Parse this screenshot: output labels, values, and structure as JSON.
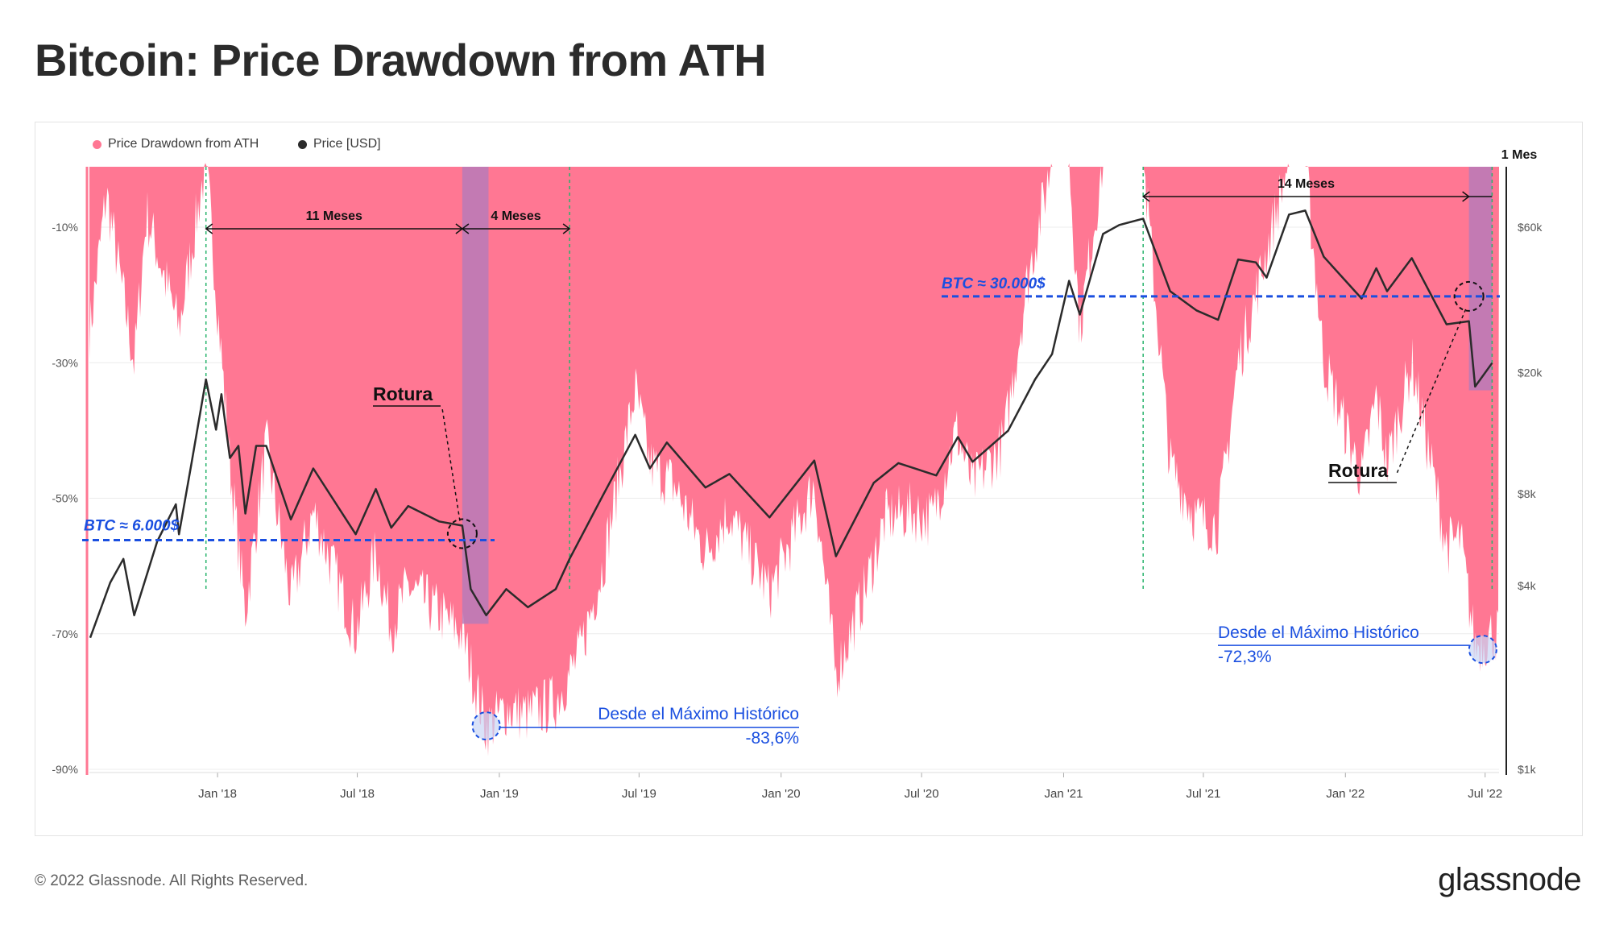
{
  "title": "Bitcoin: Price Drawdown from ATH",
  "footer": {
    "copyright": "© 2022 Glassnode. All Rights Reserved.",
    "brand": "glassnode"
  },
  "colors": {
    "drawdown": "#ff7793",
    "price": "#2b2b2b",
    "purple_band": "#b87ab8",
    "annotation_blue": "#1a4fe0",
    "guide_green": "#27b36b"
  },
  "chart_data": {
    "type": "area",
    "legend": [
      {
        "name": "Price Drawdown from ATH",
        "color": "#ff7793"
      },
      {
        "name": "Price [USD]",
        "color": "#2b2b2b"
      }
    ],
    "legend_position": "top-left",
    "grid": true,
    "x_ticks": [
      "Jan '18",
      "Jul '18",
      "Jan '19",
      "Jul '19",
      "Jan '20",
      "Jul '20",
      "Jan '21",
      "Jul '21",
      "Jan '22",
      "Jul '22"
    ],
    "y_left": {
      "ticks": [
        "-10%",
        "-30%",
        "-50%",
        "-70%",
        "-90%"
      ],
      "ylim": [
        -90,
        0
      ]
    },
    "y_right": {
      "scale": "log",
      "ticks": [
        "$60k",
        "$20k",
        "$8k",
        "$4k",
        "$1k"
      ],
      "ylim": [
        1000,
        80000
      ]
    },
    "x_range": [
      "2017-07-19",
      "2022-07-19"
    ],
    "series": [
      {
        "name": "Price Drawdown from ATH",
        "points": [
          [
            "2017-07-20",
            -25
          ],
          [
            "2017-08-10",
            -5
          ],
          [
            "2017-09-15",
            -30
          ],
          [
            "2017-10-01",
            -8
          ],
          [
            "2017-11-12",
            -25
          ],
          [
            "2017-12-17",
            0
          ],
          [
            "2018-01-17",
            -45
          ],
          [
            "2018-02-06",
            -67
          ],
          [
            "2018-03-05",
            -42
          ],
          [
            "2018-04-06",
            -65
          ],
          [
            "2018-05-05",
            -52
          ],
          [
            "2018-06-29",
            -70
          ],
          [
            "2018-07-25",
            -58
          ],
          [
            "2018-08-14",
            -69
          ],
          [
            "2018-09-05",
            -63
          ],
          [
            "2018-10-15",
            -67
          ],
          [
            "2018-11-14",
            -70
          ],
          [
            "2018-12-15",
            -84
          ],
          [
            "2019-01-10",
            -81
          ],
          [
            "2019-02-07",
            -82
          ],
          [
            "2019-03-15",
            -80
          ],
          [
            "2019-04-15",
            -73
          ],
          [
            "2019-05-15",
            -60
          ],
          [
            "2019-06-26",
            -34
          ],
          [
            "2019-07-15",
            -45
          ],
          [
            "2019-08-15",
            -48
          ],
          [
            "2019-09-25",
            -58
          ],
          [
            "2019-10-25",
            -52
          ],
          [
            "2019-12-17",
            -64
          ],
          [
            "2020-02-13",
            -48
          ],
          [
            "2020-03-12",
            -76
          ],
          [
            "2020-04-15",
            -65
          ],
          [
            "2020-05-15",
            -53
          ],
          [
            "2020-06-15",
            -52
          ],
          [
            "2020-07-15",
            -53
          ],
          [
            "2020-08-15",
            -40
          ],
          [
            "2020-09-05",
            -48
          ],
          [
            "2020-10-15",
            -42
          ],
          [
            "2020-11-15",
            -18
          ],
          [
            "2020-12-17",
            0
          ],
          [
            "2021-01-08",
            0
          ],
          [
            "2021-01-22",
            -25
          ],
          [
            "2021-02-21",
            0
          ],
          [
            "2021-03-14",
            0
          ],
          [
            "2021-04-14",
            0
          ],
          [
            "2021-05-19",
            -45
          ],
          [
            "2021-06-22",
            -53
          ],
          [
            "2021-07-20",
            -54
          ],
          [
            "2021-08-15",
            -30
          ],
          [
            "2021-09-07",
            -20
          ],
          [
            "2021-10-20",
            0
          ],
          [
            "2021-11-10",
            0
          ],
          [
            "2021-12-04",
            -30
          ],
          [
            "2022-01-22",
            -47
          ],
          [
            "2022-02-10",
            -35
          ],
          [
            "2022-02-24",
            -45
          ],
          [
            "2022-03-28",
            -30
          ],
          [
            "2022-05-12",
            -57
          ],
          [
            "2022-05-30",
            -56
          ],
          [
            "2022-06-18",
            -72
          ],
          [
            "2022-07-10",
            -70
          ]
        ]
      },
      {
        "name": "Price [USD]",
        "points": [
          [
            "2017-07-20",
            2700
          ],
          [
            "2017-08-15",
            4100
          ],
          [
            "2017-09-01",
            4900
          ],
          [
            "2017-09-15",
            3200
          ],
          [
            "2017-10-15",
            5600
          ],
          [
            "2017-11-08",
            7400
          ],
          [
            "2017-11-12",
            5900
          ],
          [
            "2017-11-28",
            10000
          ],
          [
            "2017-12-17",
            19000
          ],
          [
            "2017-12-30",
            13000
          ],
          [
            "2018-01-06",
            17000
          ],
          [
            "2018-01-17",
            10500
          ],
          [
            "2018-01-28",
            11500
          ],
          [
            "2018-02-06",
            6900
          ],
          [
            "2018-02-20",
            11500
          ],
          [
            "2018-03-05",
            11500
          ],
          [
            "2018-04-06",
            6600
          ],
          [
            "2018-05-05",
            9700
          ],
          [
            "2018-06-29",
            5900
          ],
          [
            "2018-07-25",
            8300
          ],
          [
            "2018-08-14",
            6200
          ],
          [
            "2018-09-05",
            7300
          ],
          [
            "2018-10-15",
            6500
          ],
          [
            "2018-11-14",
            6300
          ],
          [
            "2018-11-25",
            3900
          ],
          [
            "2018-12-15",
            3200
          ],
          [
            "2019-01-10",
            3900
          ],
          [
            "2019-02-07",
            3400
          ],
          [
            "2019-03-15",
            3900
          ],
          [
            "2019-04-02",
            4900
          ],
          [
            "2019-05-15",
            7900
          ],
          [
            "2019-06-26",
            12500
          ],
          [
            "2019-07-15",
            9700
          ],
          [
            "2019-08-06",
            11800
          ],
          [
            "2019-09-25",
            8400
          ],
          [
            "2019-10-26",
            9300
          ],
          [
            "2019-12-17",
            6700
          ],
          [
            "2020-02-13",
            10300
          ],
          [
            "2020-03-12",
            5000
          ],
          [
            "2020-04-30",
            8700
          ],
          [
            "2020-06-01",
            10100
          ],
          [
            "2020-07-20",
            9200
          ],
          [
            "2020-08-17",
            12300
          ],
          [
            "2020-09-05",
            10200
          ],
          [
            "2020-10-21",
            12900
          ],
          [
            "2020-11-25",
            19000
          ],
          [
            "2020-12-17",
            23000
          ],
          [
            "2021-01-08",
            40000
          ],
          [
            "2021-01-22",
            31000
          ],
          [
            "2021-02-21",
            57000
          ],
          [
            "2021-03-14",
            61000
          ],
          [
            "2021-04-14",
            64000
          ],
          [
            "2021-05-19",
            37000
          ],
          [
            "2021-06-22",
            32000
          ],
          [
            "2021-07-20",
            29800
          ],
          [
            "2021-08-15",
            47000
          ],
          [
            "2021-09-07",
            46000
          ],
          [
            "2021-09-21",
            41000
          ],
          [
            "2021-10-20",
            66000
          ],
          [
            "2021-11-10",
            68000
          ],
          [
            "2021-12-04",
            48000
          ],
          [
            "2022-01-22",
            35000
          ],
          [
            "2022-02-10",
            44000
          ],
          [
            "2022-02-24",
            37000
          ],
          [
            "2022-03-28",
            47500
          ],
          [
            "2022-05-12",
            28800
          ],
          [
            "2022-06-10",
            29500
          ],
          [
            "2022-06-18",
            18000
          ],
          [
            "2022-07-10",
            21500
          ]
        ]
      }
    ],
    "bands": [
      {
        "start": "2018-11-14",
        "end": "2018-12-18"
      },
      {
        "start": "2022-06-10",
        "end": "2022-07-10"
      }
    ],
    "guides": [
      "2017-12-17",
      "2019-04-02",
      "2021-04-14",
      "2022-07-10"
    ],
    "annotations": {
      "span_11": "11 Meses",
      "span_4": "4 Meses",
      "span_14": "14 Meses",
      "span_1": "1 Mes",
      "level_low": "BTC ≈ 6.000$",
      "level_high": "BTC ≈ 30.000$",
      "break_1": "Rotura",
      "break_2": "Rotura",
      "ath_2019_line": "Desde el Máximo Histórico",
      "ath_2019_value": "-83,6%",
      "ath_2022_line": "Desde el Máximo Histórico",
      "ath_2022_value": "-72,3%"
    }
  }
}
